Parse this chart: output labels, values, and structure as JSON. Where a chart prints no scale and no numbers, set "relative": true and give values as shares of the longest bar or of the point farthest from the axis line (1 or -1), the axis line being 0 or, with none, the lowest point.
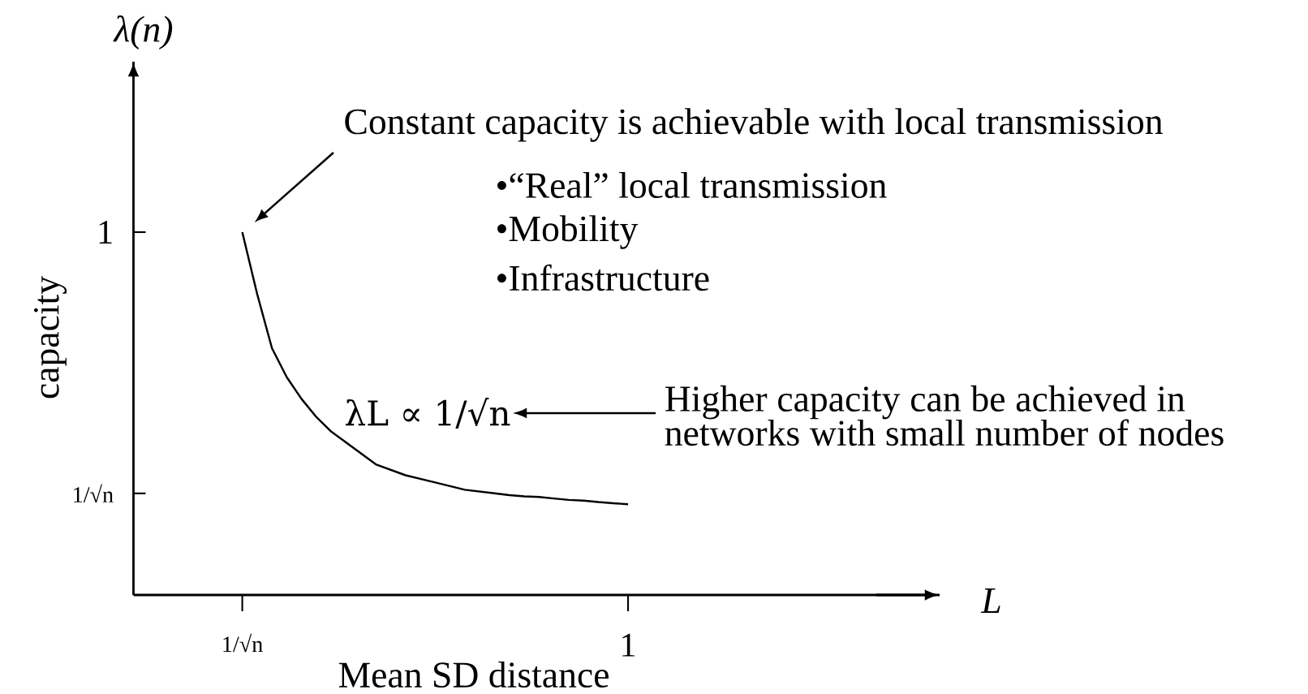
{
  "chart_data": {
    "type": "line",
    "ylabel": "capacity",
    "xlabel": "Mean SD distance",
    "relative": true,
    "categories": [
      null,
      null,
      null,
      null,
      null,
      null,
      null,
      null,
      null,
      null,
      null,
      null,
      null,
      null,
      null,
      null,
      null,
      null,
      null,
      null,
      null,
      null,
      null,
      null,
      null,
      null,
      null
    ],
    "series": [
      {
        "color": "#000000",
        "values": [
          1.0,
          0.83,
          0.68,
          0.6,
          0.54,
          0.49,
          0.45,
          0.42,
          0.39,
          0.36,
          0.345,
          0.33,
          0.32,
          0.31,
          0.3,
          0.29,
          0.285,
          0.28,
          0.275,
          0.272,
          0.27,
          0.266,
          0.262,
          0.26,
          0.256,
          0.253,
          0.25
        ]
      }
    ],
    "marker": "none",
    "line_style": "solid",
    "annotations": [
      "λ(n)",
      "L",
      "Constant capacity is achievable with local transmission",
      "•“Real” local transmission",
      "•Mobility",
      "•Infrastructure",
      "λL ∝ 1/√n",
      "Higher capacity can be achieved in networks with small number of nodes",
      "1/√n",
      "1",
      "1",
      "1/√n"
    ]
  }
}
